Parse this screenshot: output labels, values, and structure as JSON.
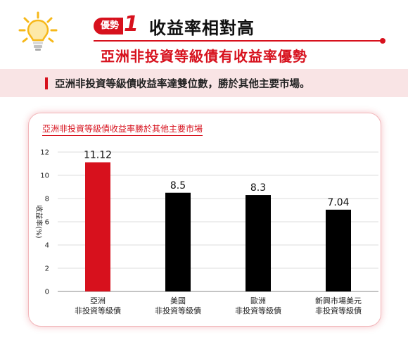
{
  "header": {
    "badge_label": "優勢",
    "badge_number": "1",
    "title": "收益率相對高",
    "subtitle": "亞洲非投資等級債有收益率優勢"
  },
  "band": {
    "text": "亞洲非投資等級債收益率達雙位數，勝於其他主要市場。"
  },
  "colors": {
    "accent": "#d7111d",
    "bar_default": "#000000",
    "band_bg": "#f9e4e5"
  },
  "chart_data": {
    "type": "bar",
    "title": "亞洲非投資等級債收益率勝於其他主要市場",
    "ylabel": "收益率(%)",
    "xlabel": "",
    "ylim": [
      0,
      12
    ],
    "yticks": [
      "0",
      "2",
      "4",
      "6",
      "8",
      "10",
      "12"
    ],
    "categories": [
      [
        "亞洲",
        "非投資等級債"
      ],
      [
        "美國",
        "非投資等級債"
      ],
      [
        "歐洲",
        "非投資等級債"
      ],
      [
        "新興市場美元",
        "非投資等級債"
      ]
    ],
    "values": [
      11.12,
      8.5,
      8.3,
      7.04
    ],
    "value_labels": [
      "11.12",
      "8.5",
      "8.3",
      "7.04"
    ],
    "bar_colors": [
      "#d7111d",
      "#000000",
      "#000000",
      "#000000"
    ],
    "grid": true,
    "legend": "none"
  }
}
